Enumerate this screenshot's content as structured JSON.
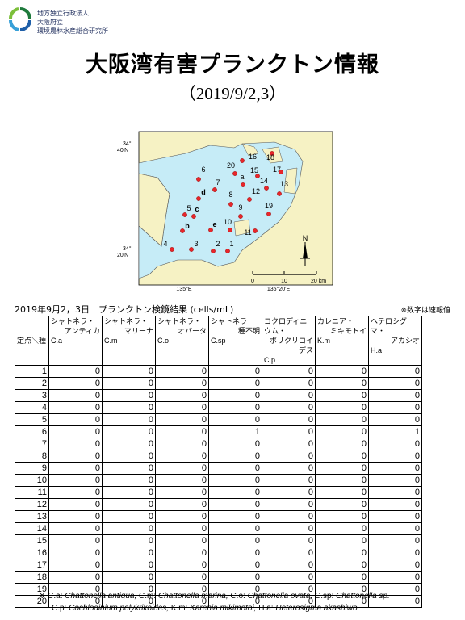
{
  "header": {
    "org": [
      "地方独立行政法人",
      "大阪府立",
      "環境農林水産総合研究所"
    ],
    "title": "大阪湾有害プランクトン情報",
    "subtitle": "（2019/9/2,3）"
  },
  "map": {
    "lat_labels": [
      [
        "34°",
        "40'N"
      ],
      [
        "34°",
        "20'N"
      ]
    ],
    "lon_labels": [
      "135°E",
      "135°20'E"
    ],
    "scale": [
      "0",
      "10",
      "20 km"
    ],
    "north": "N",
    "stations": [
      "1",
      "2",
      "3",
      "4",
      "5",
      "6",
      "7",
      "8",
      "9",
      "10",
      "11",
      "12",
      "13",
      "14",
      "15",
      "16",
      "17",
      "18",
      "19",
      "20",
      "a",
      "b",
      "c",
      "d",
      "e"
    ]
  },
  "table": {
    "caption": "2019年9月2，3日　プランクトン検鏡結果 (cells/mL)",
    "note": "※数字は速報値",
    "corner": "定点＼種",
    "columns": [
      {
        "line1": "シャトネラ・",
        "line2": "アンティカ",
        "abbr": "C.a"
      },
      {
        "line1": "シャトネラ・",
        "line2": "マリーナ",
        "abbr": "C.m"
      },
      {
        "line1": "シャトネラ・",
        "line2": "オバータ",
        "abbr": "C.o"
      },
      {
        "line1": "シャトネラ",
        "line2": "種不明",
        "abbr": "C.sp"
      },
      {
        "line1": "コクロディニウム・",
        "line2": "ポリクリコイデス",
        "abbr": "C.p"
      },
      {
        "line1": "カレニア・",
        "line2": "ミキモトイ",
        "abbr": "K.m"
      },
      {
        "line1": "ヘテロシグマ・",
        "line2": "アカシオ",
        "abbr": "H.a"
      }
    ],
    "rows": [
      [
        1,
        0,
        0,
        0,
        0,
        0,
        0,
        0
      ],
      [
        2,
        0,
        0,
        0,
        0,
        0,
        0,
        0
      ],
      [
        3,
        0,
        0,
        0,
        0,
        0,
        0,
        0
      ],
      [
        4,
        0,
        0,
        0,
        0,
        0,
        0,
        0
      ],
      [
        5,
        0,
        0,
        0,
        0,
        0,
        0,
        0
      ],
      [
        6,
        0,
        0,
        0,
        1,
        0,
        0,
        1
      ],
      [
        7,
        0,
        0,
        0,
        0,
        0,
        0,
        0
      ],
      [
        8,
        0,
        0,
        0,
        0,
        0,
        0,
        0
      ],
      [
        9,
        0,
        0,
        0,
        0,
        0,
        0,
        0
      ],
      [
        10,
        0,
        0,
        0,
        0,
        0,
        0,
        0
      ],
      [
        11,
        0,
        0,
        0,
        0,
        0,
        0,
        0
      ],
      [
        12,
        0,
        0,
        0,
        0,
        0,
        0,
        0
      ],
      [
        13,
        0,
        0,
        0,
        0,
        0,
        0,
        0
      ],
      [
        14,
        0,
        0,
        0,
        0,
        0,
        0,
        0
      ],
      [
        15,
        0,
        0,
        0,
        0,
        0,
        0,
        0
      ],
      [
        16,
        0,
        0,
        0,
        0,
        0,
        0,
        0
      ],
      [
        17,
        0,
        0,
        0,
        0,
        0,
        0,
        0
      ],
      [
        18,
        0,
        0,
        0,
        0,
        0,
        0,
        0
      ],
      [
        19,
        0,
        0,
        0,
        0,
        0,
        0,
        0
      ],
      [
        20,
        0,
        0,
        0,
        0,
        0,
        0,
        0
      ]
    ]
  },
  "footnote": {
    "mark": "※",
    "lines": [
      [
        {
          "label": "C.a:",
          "name": "Chattonella antiqua,"
        },
        {
          "label": "C.m:",
          "name": "Chattonella marina,"
        },
        {
          "label": "C.o:",
          "name": "Chattonella ovata,"
        },
        {
          "label": "C.sp:",
          "name": "Chattonella sp."
        }
      ],
      [
        {
          "label": "C.p:",
          "name": "Cochlodinium polykrikoides,"
        },
        {
          "label": "K.m:",
          "name": "Karenia mikimotoi,"
        },
        {
          "label": "H.a:",
          "name": "Heterosigma akashiwo"
        }
      ]
    ]
  }
}
